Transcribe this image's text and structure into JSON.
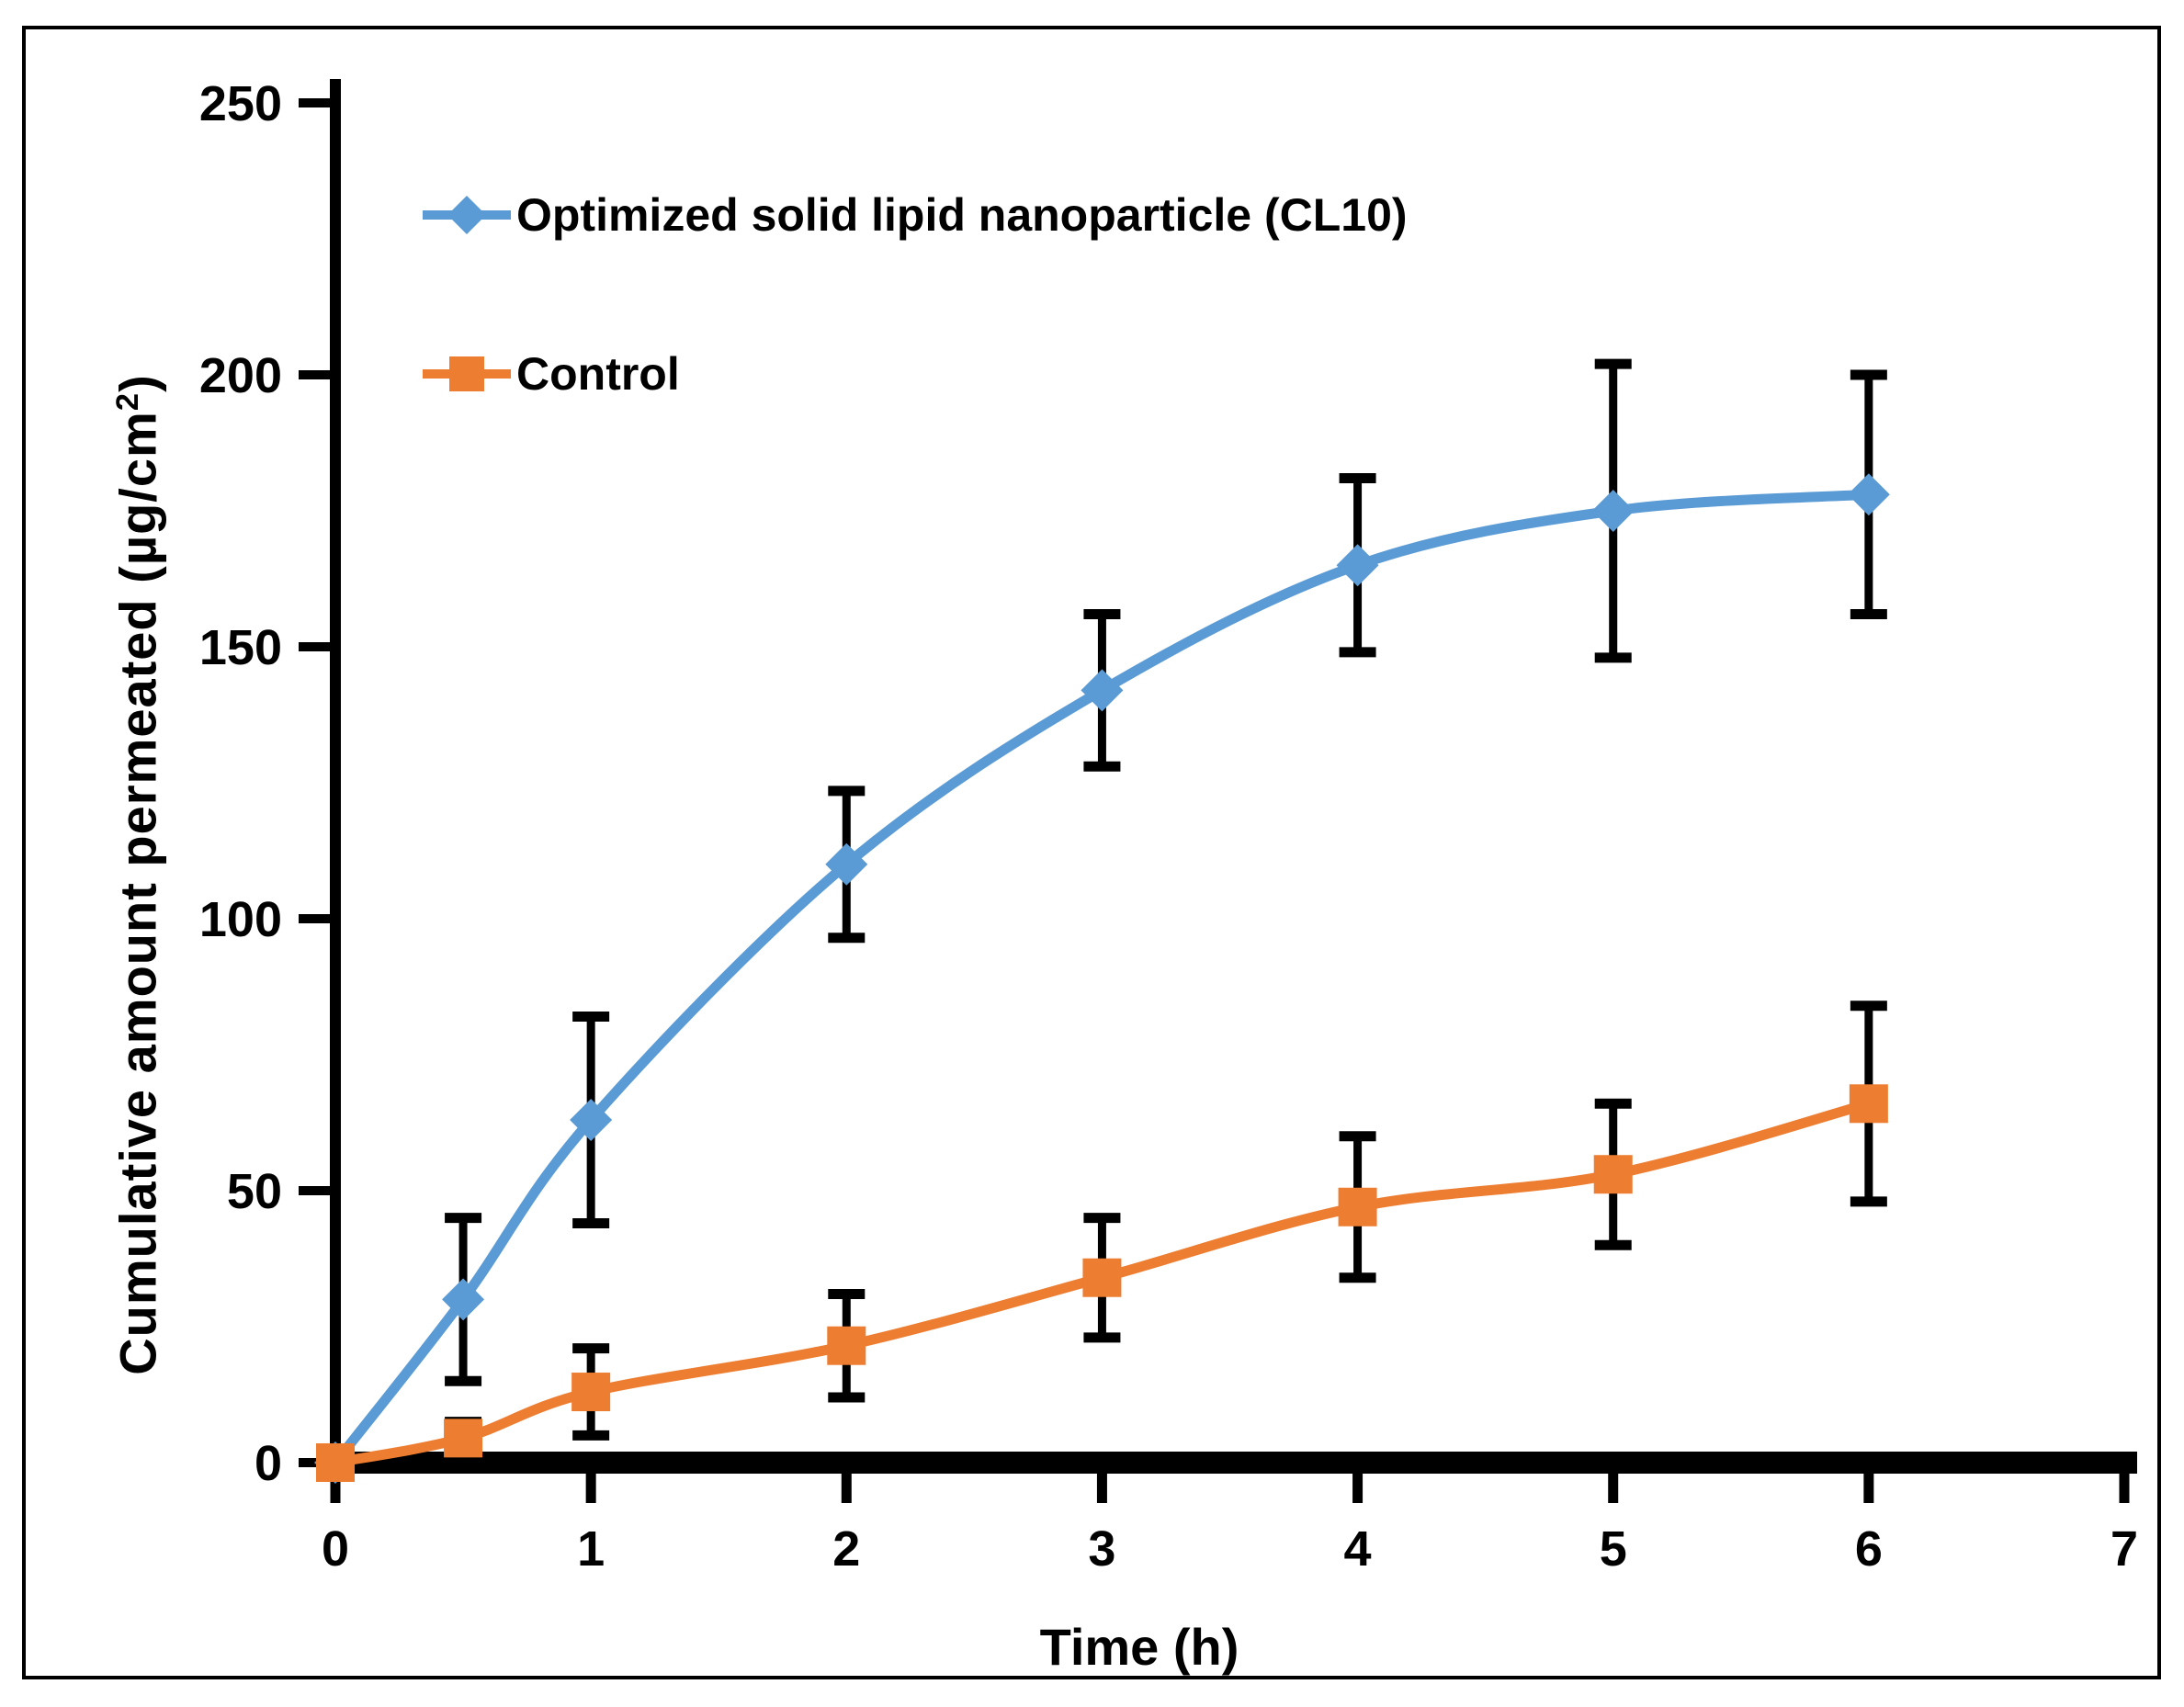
{
  "figure": {
    "background": "#ffffff",
    "border_color": "#000000",
    "text_color": "#000000"
  },
  "chart_data": {
    "type": "line",
    "title": "",
    "xlabel": "Time (h)",
    "ylabel": {
      "main": "Cumulative amount permeated (µg/cm",
      "sup": "2",
      "close": ")"
    },
    "xlim": [
      0,
      7
    ],
    "ylim": [
      0,
      250
    ],
    "x_ticks": [
      0,
      1,
      2,
      3,
      4,
      5,
      6,
      7
    ],
    "y_ticks": [
      0,
      50,
      100,
      150,
      200,
      250
    ],
    "grid": false,
    "legend_position": "top-left-inside",
    "error_bar_color": "#000000",
    "x": [
      0,
      0.5,
      1,
      2,
      3,
      4,
      5,
      6
    ],
    "series": [
      {
        "name": "Optimized solid lipid nanoparticle (CL10)",
        "color": "#5B9BD5",
        "marker": "diamond",
        "values": [
          0,
          30,
          63,
          110,
          142,
          165,
          175,
          178
        ],
        "errors": [
          0,
          15,
          19,
          13.5,
          14,
          16,
          27,
          22
        ]
      },
      {
        "name": "Control",
        "color": "#ED7D31",
        "marker": "square",
        "values": [
          0,
          4.5,
          13,
          21.5,
          34,
          47,
          53,
          66
        ],
        "errors": [
          0,
          3,
          8,
          9.5,
          11,
          13,
          13,
          18
        ]
      }
    ]
  }
}
